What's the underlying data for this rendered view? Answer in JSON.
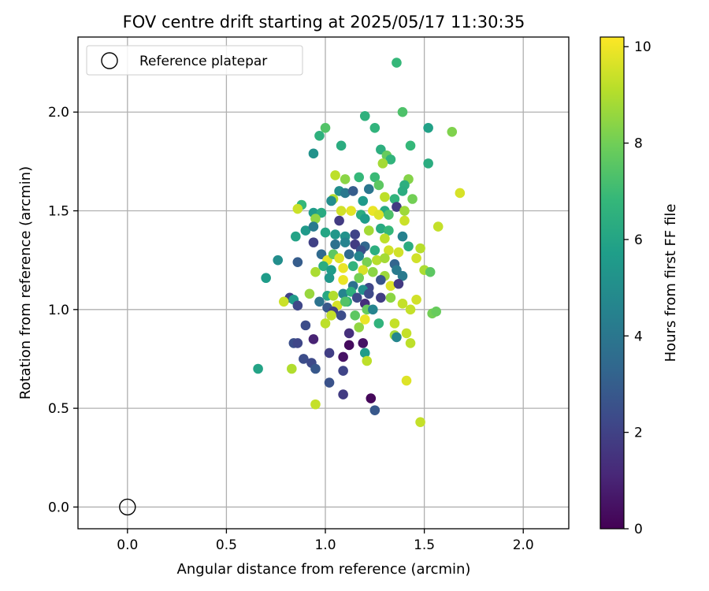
{
  "chart_data": {
    "type": "scatter",
    "title": "FOV centre drift starting at 2025/05/17 11:30:35",
    "xlabel": "Angular distance from reference (arcmin)",
    "ylabel": "Rotation from reference (arcmin)",
    "xlim": [
      -0.25,
      2.23
    ],
    "ylim": [
      -0.11,
      2.38
    ],
    "xticks": [
      0.0,
      0.5,
      1.0,
      1.5,
      2.0
    ],
    "xtick_labels": [
      "0.0",
      "0.5",
      "1.0",
      "1.5",
      "2.0"
    ],
    "yticks": [
      0.0,
      0.5,
      1.0,
      1.5,
      2.0
    ],
    "ytick_labels": [
      "0.0",
      "0.5",
      "1.0",
      "1.5",
      "2.0"
    ],
    "grid": true,
    "legend": {
      "position": "top-left",
      "entries": [
        "Reference platepar"
      ]
    },
    "reference_point": {
      "x": 0.0,
      "y": 0.0,
      "marker": "open-circle",
      "label": "Reference platepar"
    },
    "colorbar": {
      "label": "Hours from first FF file",
      "min": 0.0,
      "max": 10.2,
      "ticks": [
        0,
        2,
        4,
        6,
        8,
        10
      ],
      "tick_labels": [
        "0",
        "2",
        "4",
        "6",
        "8",
        "10"
      ],
      "colormap": "viridis"
    },
    "points": [
      [
        0.94,
        1.79,
        5.2
      ],
      [
        0.97,
        1.88,
        6.5
      ],
      [
        1.0,
        1.92,
        7.4
      ],
      [
        1.08,
        1.83,
        6.3
      ],
      [
        1.2,
        1.98,
        6.5
      ],
      [
        1.25,
        1.92,
        6.6
      ],
      [
        1.36,
        2.25,
        6.8
      ],
      [
        1.39,
        2.0,
        7.3
      ],
      [
        1.52,
        1.92,
        5.8
      ],
      [
        1.64,
        1.9,
        8.2
      ],
      [
        1.28,
        1.81,
        6.4
      ],
      [
        1.31,
        1.78,
        7.8
      ],
      [
        1.33,
        1.76,
        6.6
      ],
      [
        1.43,
        1.83,
        6.8
      ],
      [
        1.29,
        1.74,
        8.8
      ],
      [
        1.52,
        1.74,
        6.3
      ],
      [
        1.05,
        1.68,
        9.2
      ],
      [
        1.1,
        1.66,
        8.4
      ],
      [
        1.17,
        1.67,
        6.8
      ],
      [
        1.25,
        1.67,
        6.9
      ],
      [
        1.42,
        1.66,
        8.3
      ],
      [
        1.4,
        1.63,
        6.4
      ],
      [
        1.27,
        1.63,
        7.6
      ],
      [
        1.68,
        1.59,
        9.6
      ],
      [
        1.04,
        1.56,
        9.0
      ],
      [
        1.07,
        1.6,
        5.0
      ],
      [
        1.1,
        1.59,
        4.1
      ],
      [
        1.14,
        1.6,
        3.0
      ],
      [
        1.19,
        1.55,
        5.5
      ],
      [
        1.22,
        1.61,
        4.0
      ],
      [
        1.3,
        1.57,
        9.2
      ],
      [
        1.35,
        1.56,
        6.6
      ],
      [
        1.39,
        1.6,
        6.3
      ],
      [
        1.44,
        1.56,
        8.0
      ],
      [
        0.88,
        1.53,
        6.8
      ],
      [
        0.86,
        1.51,
        9.4
      ],
      [
        0.94,
        1.49,
        5.6
      ],
      [
        0.98,
        1.49,
        6.2
      ],
      [
        1.03,
        1.55,
        5.0
      ],
      [
        1.08,
        1.5,
        9.5
      ],
      [
        1.13,
        1.5,
        9.8
      ],
      [
        1.18,
        1.48,
        6.3
      ],
      [
        1.24,
        1.5,
        9.9
      ],
      [
        1.3,
        1.5,
        6.2
      ],
      [
        1.36,
        1.52,
        1.8
      ],
      [
        1.4,
        1.5,
        8.7
      ],
      [
        1.4,
        1.45,
        9.4
      ],
      [
        0.95,
        1.46,
        8.5
      ],
      [
        1.07,
        1.45,
        1.8
      ],
      [
        1.2,
        1.46,
        5.6
      ],
      [
        1.27,
        1.48,
        9.7
      ],
      [
        1.32,
        1.48,
        7.3
      ],
      [
        1.57,
        1.42,
        9.3
      ],
      [
        0.85,
        1.37,
        5.9
      ],
      [
        0.9,
        1.4,
        5.5
      ],
      [
        0.94,
        1.42,
        4.2
      ],
      [
        1.0,
        1.39,
        6.0
      ],
      [
        1.05,
        1.38,
        5.4
      ],
      [
        1.1,
        1.37,
        5.2
      ],
      [
        1.15,
        1.38,
        2.1
      ],
      [
        1.22,
        1.4,
        8.8
      ],
      [
        1.28,
        1.41,
        6.2
      ],
      [
        1.32,
        1.4,
        6.8
      ],
      [
        1.3,
        1.36,
        9.2
      ],
      [
        1.39,
        1.37,
        4.5
      ],
      [
        0.94,
        1.34,
        2.0
      ],
      [
        1.05,
        1.33,
        3.8
      ],
      [
        1.1,
        1.34,
        4.6
      ],
      [
        1.15,
        1.33,
        1.8
      ],
      [
        1.2,
        1.32,
        3.4
      ],
      [
        1.18,
        1.3,
        2.5
      ],
      [
        1.25,
        1.3,
        6.4
      ],
      [
        1.32,
        1.3,
        9.5
      ],
      [
        1.37,
        1.29,
        9.5
      ],
      [
        1.42,
        1.32,
        6.3
      ],
      [
        1.48,
        1.31,
        9.1
      ],
      [
        0.98,
        1.28,
        3.5
      ],
      [
        1.01,
        1.25,
        9.8
      ],
      [
        1.04,
        1.28,
        7.6
      ],
      [
        1.07,
        1.26,
        9.7
      ],
      [
        1.12,
        1.28,
        3.5
      ],
      [
        1.17,
        1.27,
        4.7
      ],
      [
        1.21,
        1.24,
        8.1
      ],
      [
        1.26,
        1.25,
        9.1
      ],
      [
        1.3,
        1.26,
        8.8
      ],
      [
        1.35,
        1.23,
        3.3
      ],
      [
        1.46,
        1.26,
        9.5
      ],
      [
        0.76,
        1.25,
        5.0
      ],
      [
        0.86,
        1.24,
        3.0
      ],
      [
        0.99,
        1.22,
        6.3
      ],
      [
        1.03,
        1.2,
        5.6
      ],
      [
        1.09,
        1.21,
        9.9
      ],
      [
        1.14,
        1.22,
        6.6
      ],
      [
        1.19,
        1.2,
        9.6
      ],
      [
        1.24,
        1.19,
        8.4
      ],
      [
        1.3,
        1.17,
        8.7
      ],
      [
        1.36,
        1.2,
        4.2
      ],
      [
        1.39,
        1.17,
        4.2
      ],
      [
        1.5,
        1.2,
        8.9
      ],
      [
        1.53,
        1.19,
        7.6
      ],
      [
        0.7,
        1.16,
        5.6
      ],
      [
        0.95,
        1.19,
        8.9
      ],
      [
        1.02,
        1.16,
        5.4
      ],
      [
        1.09,
        1.15,
        9.9
      ],
      [
        1.14,
        1.12,
        3.8
      ],
      [
        1.17,
        1.16,
        8.0
      ],
      [
        1.22,
        1.11,
        2.2
      ],
      [
        1.28,
        1.15,
        2.7
      ],
      [
        1.33,
        1.12,
        9.7
      ],
      [
        1.37,
        1.13,
        1.7
      ],
      [
        1.09,
        1.08,
        4.6
      ],
      [
        1.13,
        1.09,
        6.5
      ],
      [
        1.19,
        1.1,
        5.1
      ],
      [
        1.22,
        1.08,
        2.3
      ],
      [
        1.28,
        1.06,
        1.9
      ],
      [
        1.33,
        1.06,
        8.4
      ],
      [
        0.82,
        1.06,
        2.0
      ],
      [
        0.92,
        1.08,
        8.6
      ],
      [
        0.97,
        1.04,
        3.9
      ],
      [
        1.01,
        1.07,
        6.1
      ],
      [
        1.04,
        1.07,
        9.0
      ],
      [
        1.06,
        1.02,
        9.6
      ],
      [
        1.11,
        1.04,
        6.3
      ],
      [
        1.16,
        1.06,
        2.3
      ],
      [
        1.2,
        1.03,
        1.4
      ],
      [
        0.79,
        1.04,
        9.4
      ],
      [
        0.84,
        1.05,
        5.5
      ],
      [
        0.86,
        1.02,
        2.2
      ],
      [
        1.01,
        1.01,
        2.8
      ],
      [
        1.04,
        0.99,
        2.0
      ],
      [
        1.08,
        0.97,
        2.4
      ],
      [
        1.1,
        1.04,
        7.4
      ],
      [
        1.15,
        0.97,
        7.6
      ],
      [
        1.21,
        1.0,
        7.8
      ],
      [
        1.24,
        1.0,
        4.6
      ],
      [
        1.39,
        1.03,
        9.3
      ],
      [
        1.43,
        1.0,
        9.3
      ],
      [
        1.46,
        1.05,
        9.5
      ],
      [
        1.54,
        0.98,
        8.0
      ],
      [
        1.56,
        0.99,
        7.8
      ],
      [
        0.9,
        0.92,
        2.4
      ],
      [
        1.0,
        0.93,
        9.2
      ],
      [
        1.03,
        0.97,
        9.3
      ],
      [
        1.17,
        0.91,
        8.5
      ],
      [
        1.2,
        0.95,
        9.9
      ],
      [
        1.27,
        0.93,
        6.6
      ],
      [
        1.35,
        0.93,
        9.3
      ],
      [
        1.35,
        0.87,
        8.8
      ],
      [
        1.36,
        0.86,
        4.7
      ],
      [
        1.41,
        0.88,
        9.3
      ],
      [
        1.12,
        0.88,
        1.4
      ],
      [
        0.94,
        0.85,
        1.0
      ],
      [
        0.84,
        0.83,
        2.5
      ],
      [
        0.86,
        0.83,
        2.2
      ],
      [
        1.12,
        0.82,
        0.3
      ],
      [
        1.19,
        0.83,
        0.5
      ],
      [
        1.43,
        0.83,
        9.2
      ],
      [
        0.89,
        0.75,
        2.4
      ],
      [
        0.93,
        0.73,
        2.3
      ],
      [
        0.95,
        0.7,
        2.8
      ],
      [
        1.02,
        0.78,
        1.9
      ],
      [
        1.09,
        0.76,
        0.5
      ],
      [
        1.2,
        0.78,
        5.6
      ],
      [
        1.21,
        0.74,
        9.2
      ],
      [
        1.09,
        0.69,
        2.1
      ],
      [
        0.66,
        0.7,
        5.9
      ],
      [
        0.83,
        0.7,
        9.0
      ],
      [
        1.02,
        0.63,
        2.6
      ],
      [
        1.41,
        0.64,
        9.7
      ],
      [
        1.09,
        0.57,
        1.8
      ],
      [
        1.23,
        0.55,
        0.2
      ],
      [
        0.95,
        0.52,
        9.3
      ],
      [
        1.25,
        0.49,
        2.8
      ],
      [
        1.48,
        0.43,
        9.3
      ]
    ]
  }
}
